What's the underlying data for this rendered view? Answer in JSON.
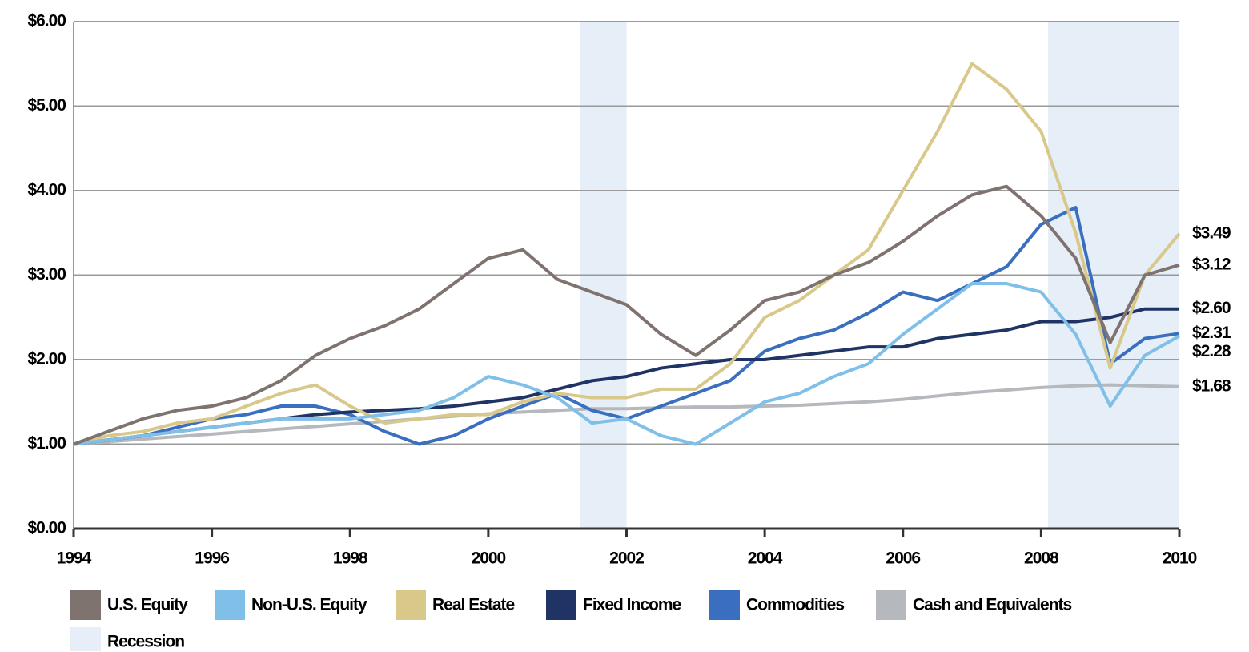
{
  "chart_data": {
    "type": "line",
    "x": [
      1994,
      1994.5,
      1995,
      1995.5,
      1996,
      1996.5,
      1997,
      1997.5,
      1998,
      1998.5,
      1999,
      1999.5,
      2000,
      2000.5,
      2001,
      2001.5,
      2002,
      2002.5,
      2003,
      2003.5,
      2004,
      2004.5,
      2005,
      2005.5,
      2006,
      2006.5,
      2007,
      2007.5,
      2008,
      2008.5,
      2009,
      2009.5,
      2010
    ],
    "series": [
      {
        "name": "U.S. Equity",
        "color": "#7f7370",
        "end_label": "$3.12",
        "values": [
          1.0,
          1.15,
          1.3,
          1.4,
          1.45,
          1.55,
          1.75,
          2.05,
          2.25,
          2.4,
          2.6,
          2.9,
          3.2,
          3.3,
          2.95,
          2.8,
          2.65,
          2.3,
          2.05,
          2.35,
          2.7,
          2.8,
          3.0,
          3.15,
          3.4,
          3.7,
          3.95,
          4.05,
          3.7,
          3.2,
          2.2,
          3.0,
          3.12
        ]
      },
      {
        "name": "Non-U.S. Equity",
        "color": "#7fbfe8",
        "end_label": "$2.28",
        "values": [
          1.0,
          1.05,
          1.1,
          1.15,
          1.2,
          1.25,
          1.3,
          1.3,
          1.3,
          1.35,
          1.4,
          1.55,
          1.8,
          1.7,
          1.55,
          1.25,
          1.3,
          1.1,
          1.0,
          1.25,
          1.5,
          1.6,
          1.8,
          1.95,
          2.3,
          2.6,
          2.9,
          2.9,
          2.8,
          2.3,
          1.45,
          2.05,
          2.28
        ]
      },
      {
        "name": "Real Estate",
        "color": "#d8c88a",
        "end_label": "$3.49",
        "values": [
          1.0,
          1.1,
          1.15,
          1.25,
          1.3,
          1.45,
          1.6,
          1.7,
          1.45,
          1.25,
          1.3,
          1.35,
          1.35,
          1.5,
          1.6,
          1.55,
          1.55,
          1.65,
          1.65,
          1.95,
          2.5,
          2.7,
          3.0,
          3.3,
          4.0,
          4.7,
          5.5,
          5.2,
          4.7,
          3.5,
          1.9,
          3.0,
          3.49
        ]
      },
      {
        "name": "Fixed Income",
        "color": "#1f3365",
        "end_label": "$2.60",
        "values": [
          1.0,
          1.05,
          1.1,
          1.15,
          1.2,
          1.25,
          1.3,
          1.35,
          1.38,
          1.4,
          1.42,
          1.45,
          1.5,
          1.55,
          1.65,
          1.75,
          1.8,
          1.9,
          1.95,
          2.0,
          2.0,
          2.05,
          2.1,
          2.15,
          2.15,
          2.25,
          2.3,
          2.35,
          2.45,
          2.45,
          2.5,
          2.6,
          2.6
        ]
      },
      {
        "name": "Commodities",
        "color": "#3a6fbf",
        "end_label": "$2.31",
        "values": [
          1.0,
          1.05,
          1.1,
          1.2,
          1.3,
          1.35,
          1.45,
          1.45,
          1.35,
          1.15,
          1.0,
          1.1,
          1.3,
          1.45,
          1.6,
          1.4,
          1.3,
          1.45,
          1.6,
          1.75,
          2.1,
          2.25,
          2.35,
          2.55,
          2.8,
          2.7,
          2.9,
          3.1,
          3.6,
          3.8,
          1.95,
          2.25,
          2.31
        ]
      },
      {
        "name": "Cash and Equivalents",
        "color": "#b5b8bd",
        "end_label": "$1.68",
        "values": [
          1.0,
          1.03,
          1.06,
          1.09,
          1.12,
          1.15,
          1.18,
          1.21,
          1.24,
          1.27,
          1.3,
          1.33,
          1.36,
          1.38,
          1.4,
          1.42,
          1.42,
          1.43,
          1.44,
          1.44,
          1.45,
          1.46,
          1.48,
          1.5,
          1.53,
          1.57,
          1.61,
          1.64,
          1.67,
          1.69,
          1.7,
          1.69,
          1.68
        ]
      }
    ],
    "shaded": {
      "name": "Recession",
      "color": "#e6eef8",
      "ranges": [
        [
          2001.33,
          2002.0
        ],
        [
          2008.1,
          2010
        ]
      ]
    },
    "xlim": [
      1994,
      2010
    ],
    "xticks": [
      1994,
      1996,
      1998,
      2000,
      2002,
      2004,
      2006,
      2008,
      2010
    ],
    "ylim": [
      0,
      6
    ],
    "yticks": [
      {
        "value": 0,
        "label": "$0.00"
      },
      {
        "value": 1,
        "label": "$1.00"
      },
      {
        "value": 2,
        "label": "$2.00"
      },
      {
        "value": 3,
        "label": "$3.00"
      },
      {
        "value": 4,
        "label": "$4.00"
      },
      {
        "value": 5,
        "label": "$5.00"
      },
      {
        "value": 6,
        "label": "$6.00"
      }
    ],
    "grid": true
  }
}
